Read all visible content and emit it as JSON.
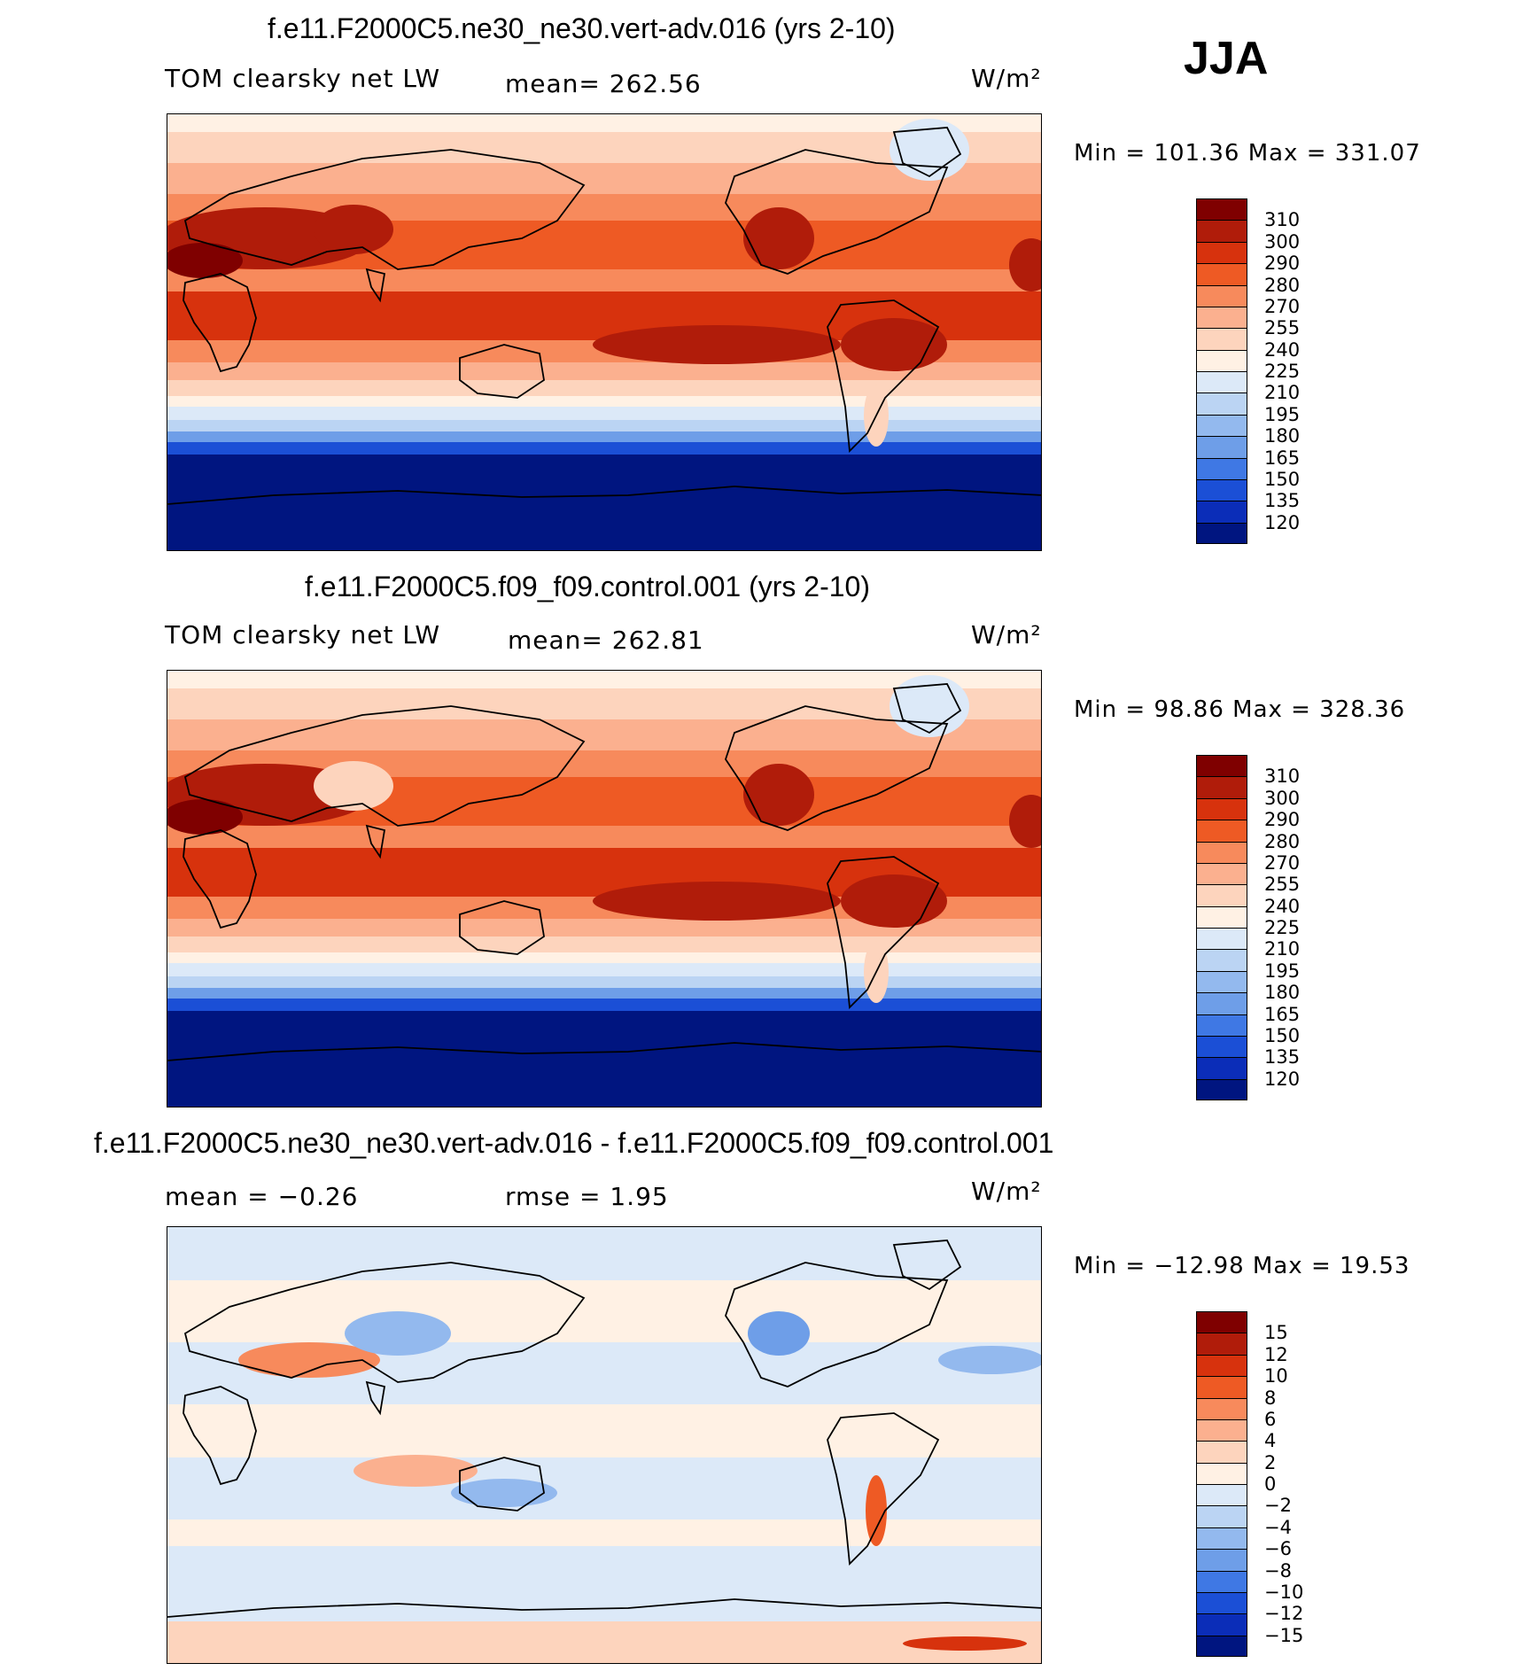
{
  "season": "JJA",
  "panels": [
    {
      "title": "f.e11.F2000C5.ne30_ne30.vert-adv.016 (yrs 2-10)",
      "left_label": "TOM clearsky net LW",
      "mid_label": "mean= 262.56",
      "rmse_label": "",
      "units": "W/m²",
      "minmax": "Min = 101.36 Max = 331.07",
      "colorbar_labels": [
        "310",
        "300",
        "290",
        "280",
        "270",
        "255",
        "240",
        "225",
        "210",
        "195",
        "180",
        "165",
        "150",
        "135",
        "120"
      ],
      "colorbar_colors": [
        "#7f0000",
        "#b01c0a",
        "#d7320d",
        "#ee5a24",
        "#f78a5c",
        "#fbb08f",
        "#fdd4bd",
        "#fff1e4",
        "#dce9f8",
        "#bbd4f3",
        "#93b9ee",
        "#6e9ee8",
        "#3f78e4",
        "#1b4fd6",
        "#0b2db8",
        "#001580"
      ],
      "map_scheme": "absolute"
    },
    {
      "title": "f.e11.F2000C5.f09_f09.control.001 (yrs 2-10)",
      "left_label": "TOM clearsky net LW",
      "mid_label": "mean= 262.81",
      "rmse_label": "",
      "units": "W/m²",
      "minmax": "Min =  98.86 Max = 328.36",
      "colorbar_labels": [
        "310",
        "300",
        "290",
        "280",
        "270",
        "255",
        "240",
        "225",
        "210",
        "195",
        "180",
        "165",
        "150",
        "135",
        "120"
      ],
      "colorbar_colors": [
        "#7f0000",
        "#b01c0a",
        "#d7320d",
        "#ee5a24",
        "#f78a5c",
        "#fbb08f",
        "#fdd4bd",
        "#fff1e4",
        "#dce9f8",
        "#bbd4f3",
        "#93b9ee",
        "#6e9ee8",
        "#3f78e4",
        "#1b4fd6",
        "#0b2db8",
        "#001580"
      ],
      "map_scheme": "absolute"
    },
    {
      "title": "f.e11.F2000C5.ne30_ne30.vert-adv.016 - f.e11.F2000C5.f09_f09.control.001",
      "left_label": "mean =  −0.26",
      "mid_label": "rmse =   1.95",
      "rmse_label": "",
      "units": "W/m²",
      "minmax": "Min = −12.98 Max =  19.53",
      "colorbar_labels": [
        "15",
        "12",
        "10",
        "8",
        "6",
        "4",
        "2",
        "0",
        "−2",
        "−4",
        "−6",
        "−8",
        "−10",
        "−12",
        "−15"
      ],
      "colorbar_colors": [
        "#7f0000",
        "#b01c0a",
        "#d7320d",
        "#ee5a24",
        "#f78a5c",
        "#fbb08f",
        "#fdd4bd",
        "#fff1e4",
        "#dce9f8",
        "#bbd4f3",
        "#93b9ee",
        "#6e9ee8",
        "#3f78e4",
        "#1b4fd6",
        "#0b2db8",
        "#001580"
      ],
      "map_scheme": "difference"
    }
  ]
}
